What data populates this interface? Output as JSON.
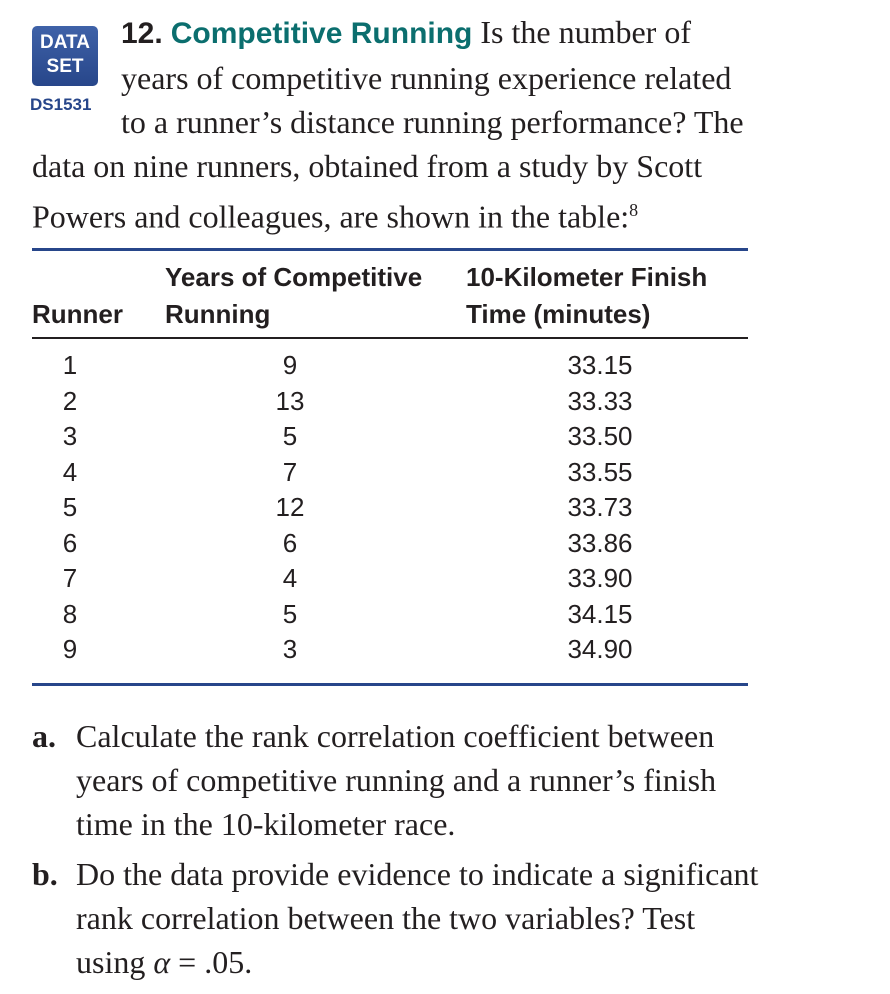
{
  "badge": {
    "line1": "DATA",
    "line2": "SET",
    "id": "DS1531"
  },
  "problem": {
    "number": "12.",
    "title": "Competitive Running",
    "lines": [
      "Is the number of",
      "years of competitive running experience related",
      "to a runner’s distance running performance? The",
      "data on nine runners, obtained from a study by Scott",
      "Powers and colleagues, are shown in the table:"
    ],
    "footnote": "8"
  },
  "table": {
    "headers": {
      "runner": "Runner",
      "years_line1": "Years of Competitive",
      "years_line2": "Running",
      "time_line1": "10-Kilometer Finish",
      "time_line2": "Time (minutes)"
    },
    "rows": [
      {
        "runner": "1",
        "years": "9",
        "time": "33.15"
      },
      {
        "runner": "2",
        "years": "13",
        "time": "33.33"
      },
      {
        "runner": "3",
        "years": "5",
        "time": "33.50"
      },
      {
        "runner": "4",
        "years": "7",
        "time": "33.55"
      },
      {
        "runner": "5",
        "years": "12",
        "time": "33.73"
      },
      {
        "runner": "6",
        "years": "6",
        "time": "33.86"
      },
      {
        "runner": "7",
        "years": "4",
        "time": "33.90"
      },
      {
        "runner": "8",
        "years": "5",
        "time": "34.15"
      },
      {
        "runner": "9",
        "years": "3",
        "time": "34.90"
      }
    ]
  },
  "parts": {
    "a": {
      "label": "a.",
      "lines": [
        "Calculate the rank correlation coefficient between",
        "years of competitive running and a runner’s finish",
        "time in the 10-kilometer race."
      ]
    },
    "b": {
      "label": "b.",
      "lines": [
        "Do the data provide evidence to indicate a significant",
        "rank correlation between the two variables? Test",
        "using"
      ],
      "alpha_symbol": "α",
      "alpha_value": " = .05."
    }
  },
  "colors": {
    "title": "#0b6e6e",
    "badge": "#27468a",
    "rule": "#27468a"
  }
}
